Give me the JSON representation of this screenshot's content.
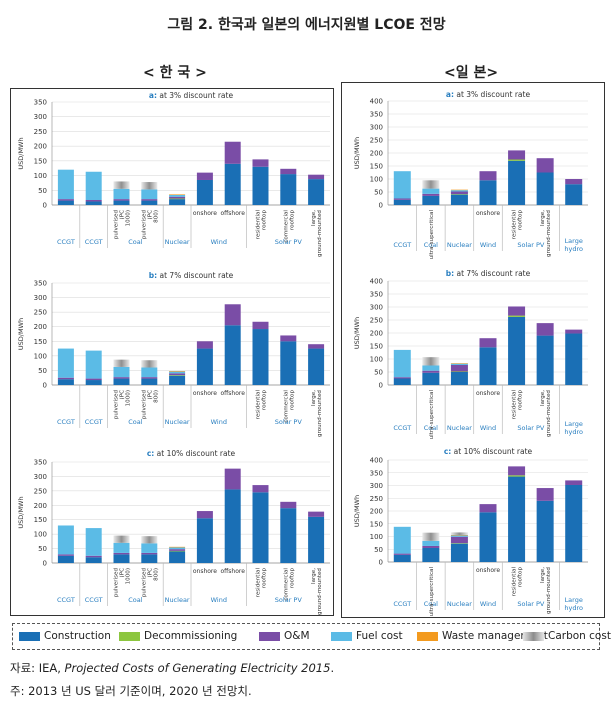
{
  "title": "그림 2. 한국과 일본의 에너지원별 LCOE 전망",
  "regions": {
    "korea": "< 한 국 >",
    "japan": "<일 본>"
  },
  "colors": {
    "construction": "#1a6fb5",
    "decommissioning": "#8cc63f",
    "om": "#7a4da6",
    "fuel": "#5bbbe6",
    "waste": "#f39a1e",
    "carbon": "#a8a8a8",
    "label": "#2a7fc0"
  },
  "legend": [
    "Construction",
    "Decommissioning",
    "O&M",
    "Fuel cost",
    "Waste management",
    "Carbon cost"
  ],
  "source_prefix": "자료: IEA, ",
  "source_title": "Projected Costs of Generating Electricity 2015",
  "source_suffix": ".",
  "footnote": "주: 2013 년 US 달러 기준이며, 2020 년 전망치.",
  "chart_data": [
    {
      "type": "bar",
      "stacked": true,
      "region": "korea",
      "title": "a: at 3% discount rate",
      "ylabel": "USD/MWh",
      "ylim": [
        0,
        350
      ],
      "yticks": [
        0,
        50,
        100,
        150,
        200,
        250,
        300,
        350
      ],
      "categories": [
        "CCGT",
        "CCGT",
        "pulverised (PC 1000)",
        "pulverised (PC 800)",
        "Nuclear",
        "onshore",
        "offshore",
        "residential rooftop",
        "commercial rooftop",
        "large, ground-mounted"
      ],
      "groups": [
        {
          "label": "CCGT",
          "span": [
            0,
            0
          ]
        },
        {
          "label": "CCGT",
          "span": [
            1,
            1
          ]
        },
        {
          "label": "Coal",
          "span": [
            2,
            3
          ]
        },
        {
          "label": "Nuclear",
          "span": [
            4,
            4
          ]
        },
        {
          "label": "Wind",
          "span": [
            5,
            6
          ]
        },
        {
          "label": "Solar PV",
          "span": [
            7,
            9
          ]
        }
      ],
      "series": [
        {
          "name": "Construction",
          "values": [
            15,
            12,
            15,
            15,
            20,
            85,
            140,
            130,
            105,
            88
          ]
        },
        {
          "name": "Decommissioning",
          "values": [
            0,
            0,
            0,
            0,
            2,
            0,
            0,
            0,
            0,
            0
          ]
        },
        {
          "name": "O&M",
          "values": [
            5,
            5,
            5,
            5,
            6,
            25,
            75,
            25,
            18,
            15
          ]
        },
        {
          "name": "Fuel cost",
          "values": [
            100,
            96,
            35,
            33,
            6,
            0,
            0,
            0,
            0,
            0
          ]
        },
        {
          "name": "Waste management",
          "values": [
            0,
            0,
            0,
            0,
            2,
            0,
            0,
            0,
            0,
            0
          ]
        },
        {
          "name": "Carbon cost",
          "values": [
            0,
            0,
            25,
            25,
            0,
            0,
            0,
            0,
            0,
            0
          ]
        }
      ]
    },
    {
      "type": "bar",
      "stacked": true,
      "region": "korea",
      "title": "b: at 7% discount rate",
      "ylabel": "USD/MWh",
      "ylim": [
        0,
        350
      ],
      "yticks": [
        0,
        50,
        100,
        150,
        200,
        250,
        300,
        350
      ],
      "categories": [
        "CCGT",
        "CCGT",
        "pulverised (PC 1000)",
        "pulverised (PC 800)",
        "Nuclear",
        "onshore",
        "offshore",
        "residential rooftop",
        "commercial rooftop",
        "large, ground-mounted"
      ],
      "groups": [
        {
          "label": "CCGT",
          "span": [
            0,
            0
          ]
        },
        {
          "label": "CCGT",
          "span": [
            1,
            1
          ]
        },
        {
          "label": "Coal",
          "span": [
            2,
            3
          ]
        },
        {
          "label": "Nuclear",
          "span": [
            4,
            4
          ]
        },
        {
          "label": "Wind",
          "span": [
            5,
            6
          ]
        },
        {
          "label": "Solar PV",
          "span": [
            7,
            9
          ]
        }
      ],
      "series": [
        {
          "name": "Construction",
          "values": [
            20,
            17,
            22,
            22,
            32,
            125,
            205,
            192,
            150,
            125
          ]
        },
        {
          "name": "Decommissioning",
          "values": [
            0,
            0,
            0,
            0,
            2,
            0,
            0,
            0,
            0,
            0
          ]
        },
        {
          "name": "O&M",
          "values": [
            5,
            5,
            5,
            5,
            6,
            25,
            72,
            25,
            20,
            15
          ]
        },
        {
          "name": "Fuel cost",
          "values": [
            100,
            96,
            35,
            33,
            6,
            0,
            0,
            0,
            0,
            0
          ]
        },
        {
          "name": "Waste management",
          "values": [
            0,
            0,
            0,
            0,
            2,
            0,
            0,
            0,
            0,
            0
          ]
        },
        {
          "name": "Carbon cost",
          "values": [
            0,
            0,
            25,
            25,
            0,
            0,
            0,
            0,
            0,
            0
          ]
        }
      ]
    },
    {
      "type": "bar",
      "stacked": true,
      "region": "korea",
      "title": "c: at 10% discount rate",
      "ylabel": "USD/MWh",
      "ylim": [
        0,
        350
      ],
      "yticks": [
        0,
        50,
        100,
        150,
        200,
        250,
        300,
        350
      ],
      "categories": [
        "CCGT",
        "CCGT",
        "pulverised (PC 1000)",
        "pulverised (PC 800)",
        "Nuclear",
        "onshore",
        "offshore",
        "residential rooftop",
        "commercial rooftop",
        "large, ground-mounted"
      ],
      "groups": [
        {
          "label": "CCGT",
          "span": [
            0,
            0
          ]
        },
        {
          "label": "CCGT",
          "span": [
            1,
            1
          ]
        },
        {
          "label": "Coal",
          "span": [
            2,
            3
          ]
        },
        {
          "label": "Nuclear",
          "span": [
            4,
            4
          ]
        },
        {
          "label": "Wind",
          "span": [
            5,
            6
          ]
        },
        {
          "label": "Solar PV",
          "span": [
            7,
            9
          ]
        }
      ],
      "series": [
        {
          "name": "Construction",
          "values": [
            25,
            20,
            30,
            30,
            40,
            155,
            255,
            245,
            190,
            160
          ]
        },
        {
          "name": "Decommissioning",
          "values": [
            0,
            0,
            0,
            0,
            2,
            0,
            0,
            0,
            0,
            0
          ]
        },
        {
          "name": "O&M",
          "values": [
            5,
            5,
            5,
            5,
            6,
            25,
            72,
            25,
            22,
            18
          ]
        },
        {
          "name": "Fuel cost",
          "values": [
            100,
            96,
            35,
            33,
            6,
            0,
            0,
            0,
            0,
            0
          ]
        },
        {
          "name": "Waste management",
          "values": [
            0,
            0,
            0,
            0,
            2,
            0,
            0,
            0,
            0,
            0
          ]
        },
        {
          "name": "Carbon cost",
          "values": [
            0,
            0,
            25,
            25,
            0,
            0,
            0,
            0,
            0,
            0
          ]
        }
      ]
    },
    {
      "type": "bar",
      "stacked": true,
      "region": "japan",
      "title": "a: at 3% discount rate",
      "ylabel": "USD/MWh",
      "ylim": [
        0,
        400
      ],
      "yticks": [
        0,
        50,
        100,
        150,
        200,
        250,
        300,
        350,
        400
      ],
      "categories": [
        "CCGT",
        "ultra-supercritical",
        "Nuclear",
        "onshore",
        "residential rooftop",
        "large, ground-mounted",
        "Large hydro"
      ],
      "groups": [
        {
          "label": "CCGT",
          "span": [
            0,
            0
          ]
        },
        {
          "label": "Coal",
          "span": [
            1,
            1
          ]
        },
        {
          "label": "Nuclear",
          "span": [
            2,
            2
          ]
        },
        {
          "label": "Wind",
          "span": [
            3,
            3
          ]
        },
        {
          "label": "Solar PV",
          "span": [
            4,
            5
          ]
        },
        {
          "label": "Large hydro",
          "span": [
            6,
            6
          ]
        }
      ],
      "series": [
        {
          "name": "Construction",
          "values": [
            20,
            35,
            40,
            95,
            170,
            125,
            80
          ]
        },
        {
          "name": "Decommissioning",
          "values": [
            0,
            0,
            2,
            0,
            5,
            0,
            0
          ]
        },
        {
          "name": "O&M",
          "values": [
            5,
            8,
            10,
            35,
            35,
            55,
            20
          ]
        },
        {
          "name": "Fuel cost",
          "values": [
            105,
            20,
            5,
            0,
            0,
            0,
            0
          ]
        },
        {
          "name": "Waste management",
          "values": [
            0,
            0,
            2,
            0,
            0,
            0,
            0
          ]
        },
        {
          "name": "Carbon cost",
          "values": [
            0,
            32,
            0,
            0,
            0,
            0,
            0
          ]
        }
      ]
    },
    {
      "type": "bar",
      "stacked": true,
      "region": "japan",
      "title": "b: at 7% discount rate",
      "ylabel": "USD/MWh",
      "ylim": [
        0,
        400
      ],
      "yticks": [
        0,
        50,
        100,
        150,
        200,
        250,
        300,
        350,
        400
      ],
      "categories": [
        "CCGT",
        "ultra-supercritical",
        "Nuclear",
        "onshore",
        "residential rooftop",
        "large, ground-mounted",
        "Large hydro"
      ],
      "groups": [
        {
          "label": "CCGT",
          "span": [
            0,
            0
          ]
        },
        {
          "label": "Coal",
          "span": [
            1,
            1
          ]
        },
        {
          "label": "Nuclear",
          "span": [
            2,
            2
          ]
        },
        {
          "label": "Wind",
          "span": [
            3,
            3
          ]
        },
        {
          "label": "Solar PV",
          "span": [
            4,
            5
          ]
        },
        {
          "label": "Large hydro",
          "span": [
            6,
            6
          ]
        }
      ],
      "series": [
        {
          "name": "Construction",
          "values": [
            25,
            47,
            50,
            145,
            262,
            190,
            198
          ]
        },
        {
          "name": "Decommissioning",
          "values": [
            0,
            0,
            2,
            0,
            5,
            0,
            0
          ]
        },
        {
          "name": "O&M",
          "values": [
            5,
            8,
            25,
            35,
            35,
            48,
            15
          ]
        },
        {
          "name": "Fuel cost",
          "values": [
            105,
            20,
            5,
            0,
            0,
            0,
            0
          ]
        },
        {
          "name": "Waste management",
          "values": [
            0,
            0,
            2,
            0,
            0,
            0,
            0
          ]
        },
        {
          "name": "Carbon cost",
          "values": [
            0,
            32,
            0,
            0,
            0,
            0,
            0
          ]
        }
      ]
    },
    {
      "type": "bar",
      "stacked": true,
      "region": "japan",
      "title": "c: at 10% discount rate",
      "ylabel": "USD/MWh",
      "ylim": [
        0,
        400
      ],
      "yticks": [
        0,
        50,
        100,
        150,
        200,
        250,
        300,
        350,
        400
      ],
      "categories": [
        "CCGT",
        "ultra-supercritical",
        "Nuclear",
        "onshore",
        "residential rooftop",
        "large, ground-mounted",
        "Large hydro"
      ],
      "groups": [
        {
          "label": "CCGT",
          "span": [
            0,
            0
          ]
        },
        {
          "label": "Coal",
          "span": [
            1,
            1
          ]
        },
        {
          "label": "Nuclear",
          "span": [
            2,
            2
          ]
        },
        {
          "label": "Wind",
          "span": [
            3,
            3
          ]
        },
        {
          "label": "Solar PV",
          "span": [
            4,
            5
          ]
        },
        {
          "label": "Large hydro",
          "span": [
            6,
            6
          ]
        }
      ],
      "series": [
        {
          "name": "Construction",
          "values": [
            28,
            55,
            72,
            195,
            335,
            240,
            302
          ]
        },
        {
          "name": "Decommissioning",
          "values": [
            0,
            0,
            2,
            0,
            5,
            0,
            0
          ]
        },
        {
          "name": "O&M",
          "values": [
            5,
            8,
            25,
            32,
            35,
            50,
            18
          ]
        },
        {
          "name": "Fuel cost",
          "values": [
            105,
            20,
            5,
            0,
            0,
            0,
            0
          ]
        },
        {
          "name": "Waste management",
          "values": [
            0,
            0,
            2,
            0,
            0,
            0,
            0
          ]
        },
        {
          "name": "Carbon cost",
          "values": [
            0,
            32,
            10,
            0,
            0,
            0,
            0
          ]
        }
      ]
    }
  ]
}
